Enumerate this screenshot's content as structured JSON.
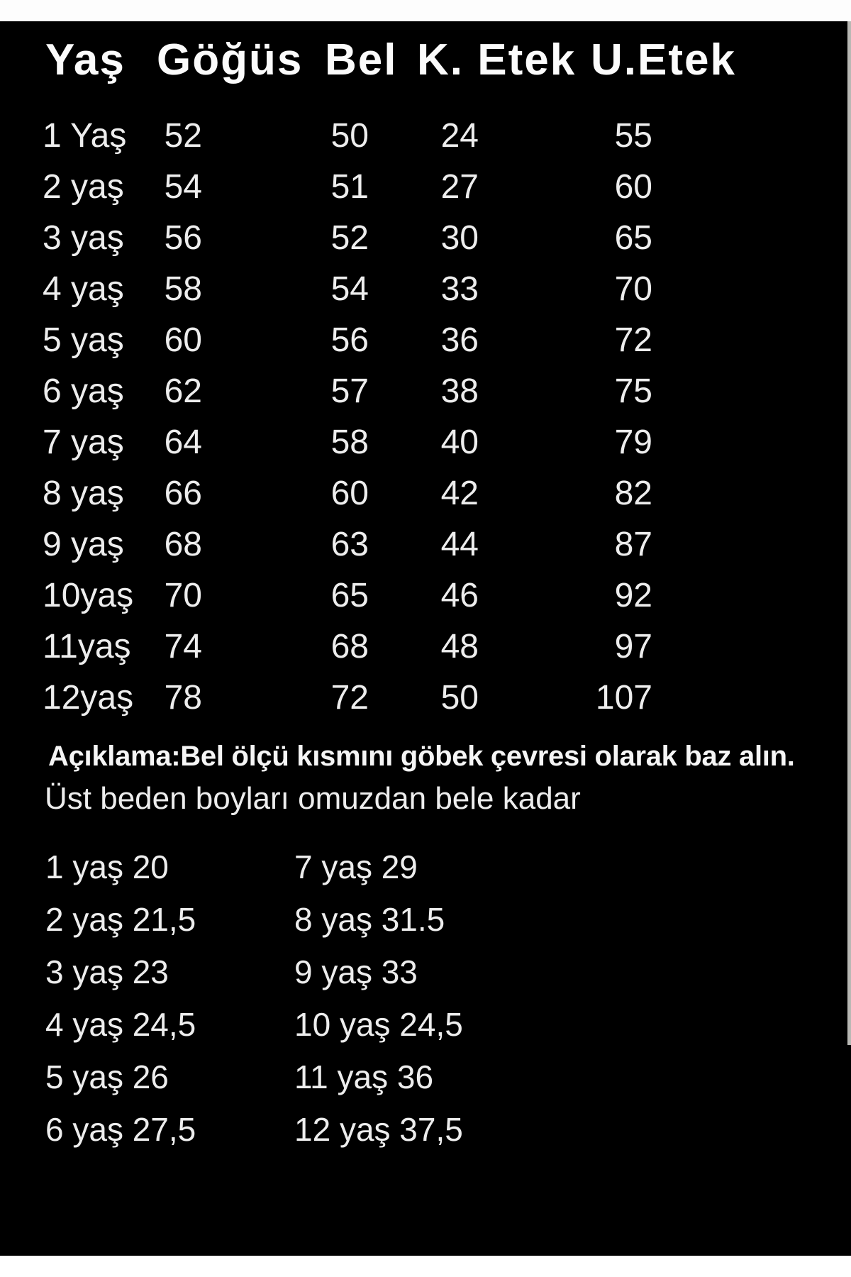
{
  "colors": {
    "background": "#000000",
    "text": "#ededed",
    "header_text": "#fbfbfb",
    "strip": "#ffffff",
    "scrollbar": "#b8b8b4"
  },
  "size_table": {
    "headers": [
      "Yaş",
      "Göğüs",
      "Bel",
      "K. Etek",
      "U.Etek"
    ],
    "rows": [
      {
        "age": "1 Yaş",
        "chest": "52",
        "waist": "50",
        "short_skirt": "24",
        "long_skirt": "55"
      },
      {
        "age": "2 yaş",
        "chest": "54",
        "waist": "51",
        "short_skirt": "27",
        "long_skirt": "60"
      },
      {
        "age": "3 yaş",
        "chest": "56",
        "waist": "52",
        "short_skirt": "30",
        "long_skirt": "65"
      },
      {
        "age": "4 yaş",
        "chest": "58",
        "waist": "54",
        "short_skirt": "33",
        "long_skirt": "70"
      },
      {
        "age": "5 yaş",
        "chest": "60",
        "waist": "56",
        "short_skirt": "36",
        "long_skirt": "72"
      },
      {
        "age": "6 yaş",
        "chest": "62",
        "waist": "57",
        "short_skirt": "38",
        "long_skirt": "75"
      },
      {
        "age": "7 yaş",
        "chest": "64",
        "waist": "58",
        "short_skirt": "40",
        "long_skirt": "79"
      },
      {
        "age": "8 yaş",
        "chest": "66",
        "waist": "60",
        "short_skirt": "42",
        "long_skirt": "82"
      },
      {
        "age": "9 yaş",
        "chest": "68",
        "waist": "63",
        "short_skirt": "44",
        "long_skirt": "87"
      },
      {
        "age": "10yaş",
        "chest": "70",
        "waist": "65",
        "short_skirt": "46",
        "long_skirt": "92"
      },
      {
        "age": "11yaş",
        "chest": "74",
        "waist": "68",
        "short_skirt": "48",
        "long_skirt": "97"
      },
      {
        "age": "12yaş",
        "chest": "78",
        "waist": "72",
        "short_skirt": "50",
        "long_skirt": "107"
      }
    ]
  },
  "notes": {
    "line1": "Açıklama:Bel ölçü kısmını göbek çevresi olarak baz alın.",
    "line2": "Üst beden boyları omuzdan bele kadar"
  },
  "upper_body_lengths": {
    "left": [
      "1 yaş 20",
      "2 yaş 21,5",
      "3 yaş 23",
      "4 yaş 24,5",
      "5 yaş 26",
      "6 yaş 27,5"
    ],
    "right": [
      "7 yaş 29",
      "8 yaş 31.5",
      "9 yaş 33",
      "10 yaş 24,5",
      "11 yaş 36",
      "12 yaş 37,5"
    ]
  }
}
